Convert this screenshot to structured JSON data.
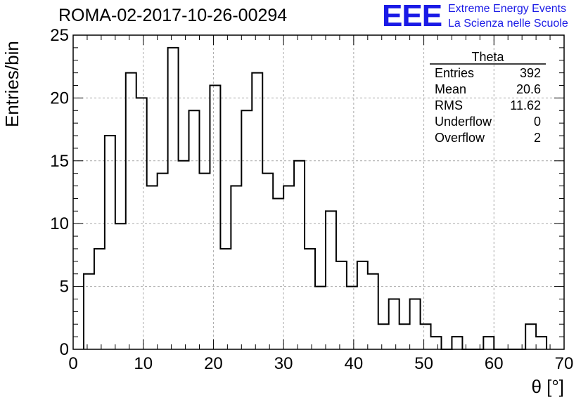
{
  "title": "ROMA-02-2017-10-26-00294",
  "logo": {
    "mark": "EEE",
    "line1": "Extreme Energy Events",
    "line2": "La Scienza nelle Scuole",
    "color": "#1a1ae6"
  },
  "stats": {
    "name": "Theta",
    "rows": [
      {
        "label": "Entries",
        "value": "392"
      },
      {
        "label": "Mean",
        "value": "20.6"
      },
      {
        "label": "RMS",
        "value": "11.62"
      },
      {
        "label": "Underflow",
        "value": "0"
      },
      {
        "label": "Overflow",
        "value": "2"
      }
    ]
  },
  "chart_data": {
    "type": "bar",
    "histogram": true,
    "title": "ROMA-02-2017-10-26-00294",
    "xlabel": "θ [°]",
    "ylabel": "Entries/bin",
    "xlim": [
      0,
      70
    ],
    "ylim": [
      0,
      25
    ],
    "bin_width": 1.5,
    "bin_start": 1.5,
    "values": [
      6,
      8,
      17,
      10,
      22,
      20,
      13,
      14,
      24,
      15,
      19,
      14,
      21,
      8,
      13,
      19,
      22,
      14,
      12,
      13,
      15,
      8,
      5,
      11,
      7,
      5,
      7,
      6,
      2,
      4,
      2,
      4,
      2,
      1,
      0,
      1,
      0,
      0,
      1,
      0,
      0,
      0,
      2,
      1
    ],
    "x_ticks": [
      "0",
      "10",
      "20",
      "30",
      "40",
      "50",
      "60",
      "70"
    ],
    "y_ticks": [
      "0",
      "5",
      "10",
      "15",
      "20",
      "25"
    ],
    "grid": true,
    "line_color": "#000000"
  }
}
